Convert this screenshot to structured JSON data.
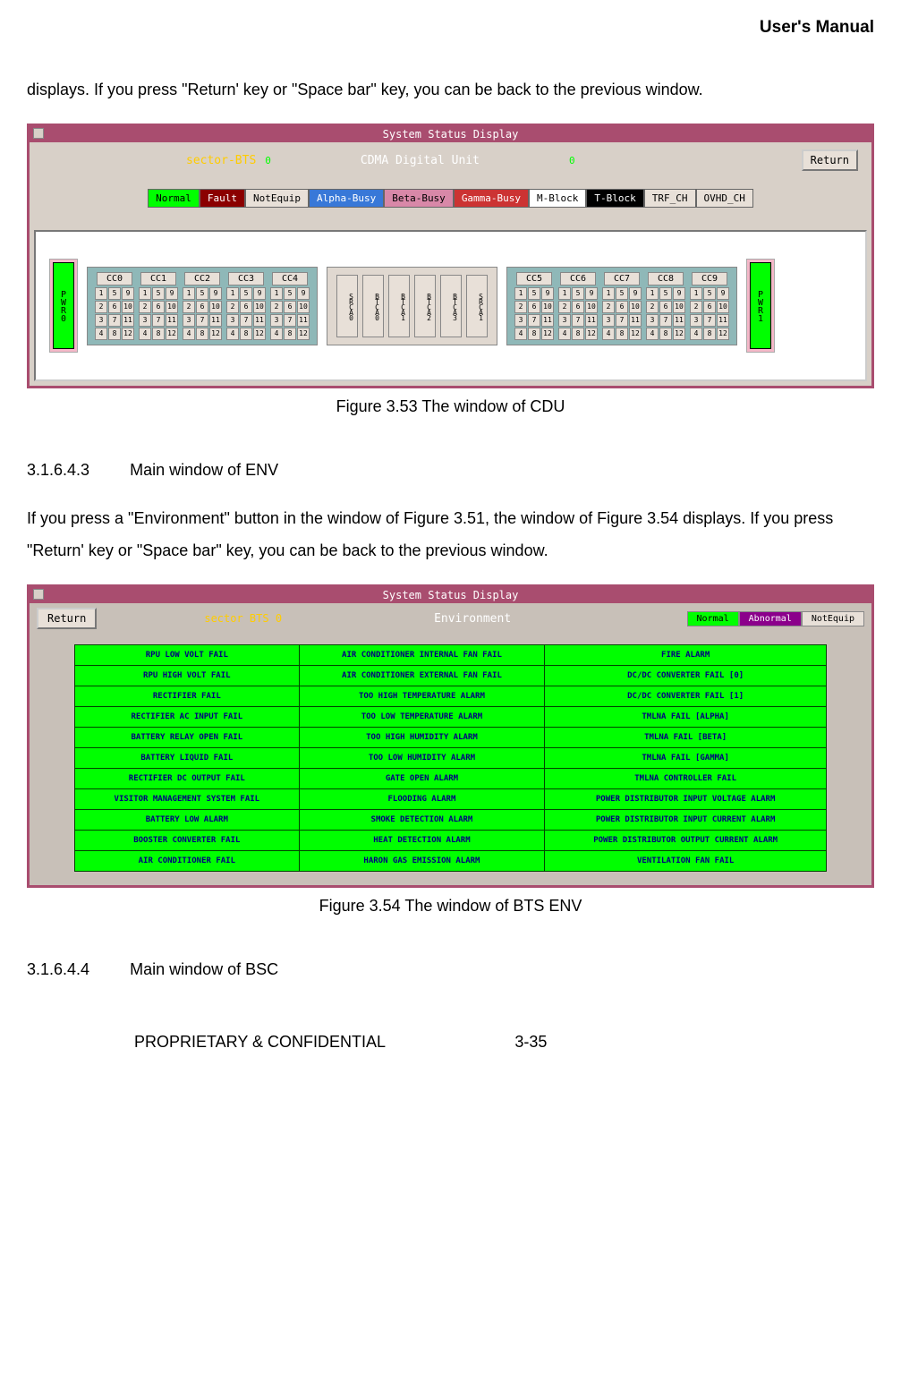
{
  "page": {
    "header": "User's Manual",
    "intro_text": "displays. If you press \"Return' key or \"Space bar\" key, you can be back to the previous window.",
    "fig1_caption": "Figure 3.53 The window of CDU",
    "section_env_num": "3.1.6.4.3",
    "section_env_title": "Main window of ENV",
    "env_text": "If you press a \"Environment\" button in the window of Figure 3.51, the window of Figure 3.54 displays. If you press \"Return' key or \"Space bar\" key, you can be back to the previous window.",
    "fig2_caption": "Figure 3.54 The window of BTS ENV",
    "section_bsc_num": "3.1.6.4.4",
    "section_bsc_title": "Main window of BSC",
    "footer": "PROPRIETARY & CONFIDENTIAL",
    "footer_page": "3-35"
  },
  "cdu": {
    "titlebar": "System Status Display",
    "sector_label": "sector-BTS",
    "sector_val": "0",
    "unit_title": "CDMA Digital Unit",
    "unit_val": "0",
    "return_btn": "Return",
    "legend": [
      {
        "label": "Normal",
        "bg": "#00ff00",
        "fg": "#000000"
      },
      {
        "label": "Fault",
        "bg": "#8b0000",
        "fg": "#ffffff"
      },
      {
        "label": "NotEquip",
        "bg": "#e8e0d8",
        "fg": "#000000"
      },
      {
        "label": "Alpha-Busy",
        "bg": "#3878d8",
        "fg": "#ffffff"
      },
      {
        "label": "Beta-Busy",
        "bg": "#d888a8",
        "fg": "#000000"
      },
      {
        "label": "Gamma-Busy",
        "bg": "#cc3333",
        "fg": "#ffffff"
      },
      {
        "label": "M-Block",
        "bg": "#ffffff",
        "fg": "#000000"
      },
      {
        "label": "T-Block",
        "bg": "#000000",
        "fg": "#ffffff"
      },
      {
        "label": "TRF_CH",
        "bg": "#e8e0d8",
        "fg": "#000000"
      },
      {
        "label": "OVHD_CH",
        "bg": "#e8e0d8",
        "fg": "#000000"
      }
    ],
    "pwr0": {
      "label": "PWR0",
      "bg": "#00ff00"
    },
    "pwr1": {
      "label": "PWR1",
      "bg": "#00ff00"
    },
    "left_ccs": [
      "CC0",
      "CC1",
      "CC2",
      "CC3",
      "CC4"
    ],
    "right_ccs": [
      "CC5",
      "CC6",
      "CC7",
      "CC8",
      "CC9"
    ],
    "grid_values": [
      "1",
      "5",
      "9",
      "2",
      "6",
      "10",
      "3",
      "7",
      "11",
      "4",
      "8",
      "12"
    ],
    "mid_cols": [
      "SRCA0",
      "BTCA0",
      "BTCA1",
      "BTCA2",
      "BTCA3",
      "SRCA1"
    ]
  },
  "env": {
    "titlebar": "System Status Display",
    "return_btn": "Return",
    "sector_label": "sector BTS 0",
    "title": "Environment",
    "legend": [
      {
        "label": "Normal",
        "bg": "#00ff00",
        "fg": "#000000"
      },
      {
        "label": "Abnormal",
        "bg": "#8b008b",
        "fg": "#ffffff"
      },
      {
        "label": "NotEquip",
        "bg": "#e8e0d8",
        "fg": "#000000"
      }
    ],
    "rows": [
      [
        "RPU LOW VOLT FAIL",
        "AIR CONDITIONER INTERNAL FAN FAIL",
        "FIRE ALARM"
      ],
      [
        "RPU HIGH VOLT FAIL",
        "AIR CONDITIONER EXTERNAL FAN FAIL",
        "DC/DC CONVERTER FAIL [0]"
      ],
      [
        "RECTIFIER FAIL",
        "TOO HIGH TEMPERATURE ALARM",
        "DC/DC CONVERTER FAIL [1]"
      ],
      [
        "RECTIFIER AC INPUT FAIL",
        "TOO LOW TEMPERATURE ALARM",
        "TMLNA FAIL [ALPHA]"
      ],
      [
        "BATTERY RELAY OPEN FAIL",
        "TOO HIGH HUMIDITY ALARM",
        "TMLNA FAIL   [BETA]"
      ],
      [
        "BATTERY LIQUID FAIL",
        "TOO LOW HUMIDITY ALARM",
        "TMLNA FAIL [GAMMA]"
      ],
      [
        "RECTIFIER DC OUTPUT FAIL",
        "GATE OPEN ALARM",
        "TMLNA CONTROLLER FAIL"
      ],
      [
        "VISITOR MANAGEMENT SYSTEM FAIL",
        "FLOODING ALARM",
        "POWER DISTRIBUTOR INPUT VOLTAGE ALARM"
      ],
      [
        "BATTERY LOW ALARM",
        "SMOKE DETECTION ALARM",
        "POWER DISTRIBUTOR   INPUT   CURRENT ALARM"
      ],
      [
        "BOOSTER CONVERTER FAIL",
        "HEAT   DETECTION ALARM",
        "POWER DISTRIBUTOR OUTPUT CURRENT ALARM"
      ],
      [
        "AIR CONDITIONER FAIL",
        "HARON GAS EMISSION ALARM",
        "VENTILATION FAN FAIL"
      ]
    ]
  }
}
